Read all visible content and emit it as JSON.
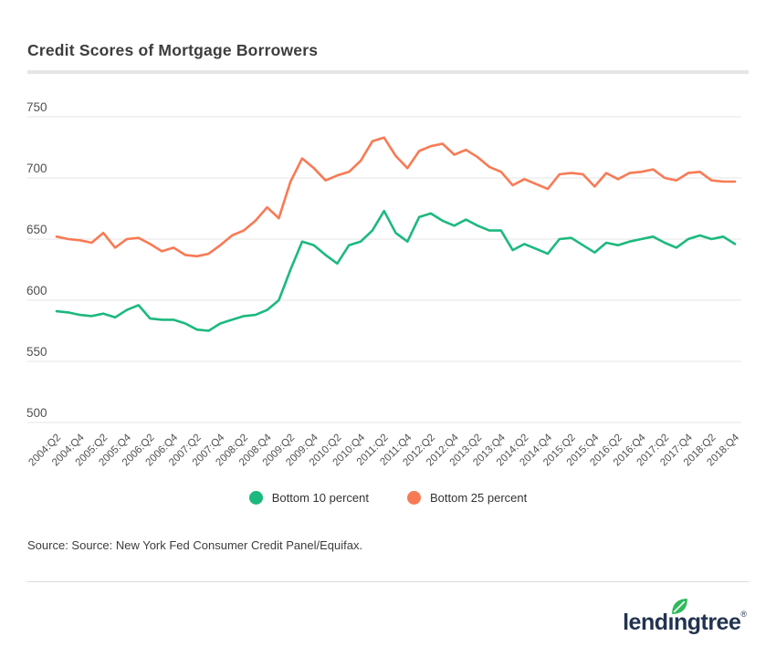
{
  "page": {
    "title": "Credit Scores of Mortgage Borrowers",
    "source_text": "Source: Source: New York Fed Consumer Credit Panel/Equifax.",
    "logo": {
      "brand": "lendingtree",
      "registered_mark": "®"
    }
  },
  "colors": {
    "bottom10_green": "#1cb97e",
    "bottom25_orange": "#f87a54",
    "grid": "#e9e9e9",
    "axis_text": "#505050",
    "title_text": "#3d3d3d",
    "logo_navy": "#223351",
    "logo_leaf_green": "#2fba5a"
  },
  "chart_data": {
    "type": "line",
    "title": "Credit Scores of Mortgage Borrowers",
    "xlabel": "",
    "ylabel": "",
    "ylim": [
      500,
      760
    ],
    "yticks": [
      750,
      700,
      650,
      600,
      550,
      500
    ],
    "grid": "horizontal",
    "legend_position": "bottom",
    "x_tick_note": "every second quarter labeled, rotated 45 degrees",
    "x": [
      "2004:Q2",
      "2004:Q3",
      "2004:Q4",
      "2005:Q1",
      "2005:Q2",
      "2005:Q3",
      "2005:Q4",
      "2006:Q1",
      "2006:Q2",
      "2006:Q3",
      "2006:Q4",
      "2007:Q1",
      "2007:Q2",
      "2007:Q3",
      "2007:Q4",
      "2008:Q1",
      "2008:Q2",
      "2008:Q3",
      "2008:Q4",
      "2009:Q1",
      "2009:Q2",
      "2009:Q3",
      "2009:Q4",
      "2010:Q1",
      "2010:Q2",
      "2010:Q3",
      "2010:Q4",
      "2011:Q1",
      "2011:Q2",
      "2011:Q3",
      "2011:Q4",
      "2012:Q1",
      "2012:Q2",
      "2012:Q3",
      "2012:Q4",
      "2013:Q1",
      "2013:Q2",
      "2013:Q3",
      "2013:Q4",
      "2014:Q1",
      "2014:Q2",
      "2014:Q3",
      "2014:Q4",
      "2015:Q1",
      "2015:Q2",
      "2015:Q3",
      "2015:Q4",
      "2016:Q1",
      "2016:Q2",
      "2016:Q3",
      "2016:Q4",
      "2017:Q1",
      "2017:Q2",
      "2017:Q3",
      "2017:Q4",
      "2018:Q1",
      "2018:Q2",
      "2018:Q3",
      "2018:Q4"
    ],
    "series": [
      {
        "name": "Bottom 10 percent",
        "color": "#1cb97e",
        "values": [
          591,
          590,
          588,
          587,
          589,
          586,
          592,
          596,
          585,
          584,
          584,
          581,
          576,
          575,
          581,
          584,
          587,
          588,
          592,
          600,
          625,
          648,
          645,
          637,
          630,
          645,
          648,
          657,
          673,
          655,
          648,
          668,
          671,
          665,
          661,
          666,
          661,
          657,
          657,
          641,
          646,
          642,
          638,
          650,
          651,
          645,
          639,
          647,
          645,
          648,
          650,
          652,
          647,
          643,
          650,
          653,
          650,
          652,
          646
        ]
      },
      {
        "name": "Bottom 25 percent",
        "color": "#f87a54",
        "values": [
          652,
          650,
          649,
          647,
          655,
          643,
          650,
          651,
          646,
          640,
          643,
          637,
          636,
          638,
          645,
          653,
          657,
          665,
          676,
          667,
          697,
          716,
          708,
          698,
          702,
          705,
          714,
          730,
          733,
          718,
          708,
          722,
          726,
          728,
          719,
          723,
          717,
          709,
          705,
          694,
          699,
          695,
          691,
          703,
          704,
          703,
          693,
          704,
          699,
          704,
          705,
          707,
          700,
          698,
          704,
          705,
          698,
          697,
          697
        ]
      }
    ]
  }
}
